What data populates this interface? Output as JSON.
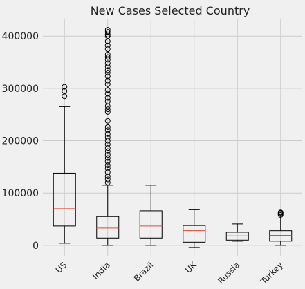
{
  "chart_data": {
    "type": "box",
    "title": "New Cases Selected Country",
    "xlabel": "",
    "ylabel": "",
    "ylim": [
      -20000,
      432000
    ],
    "yticks": [
      0,
      100000,
      200000,
      300000,
      400000
    ],
    "ytick_labels": [
      "0",
      "100000",
      "200000",
      "300000",
      "400000"
    ],
    "grid": true,
    "colors": {
      "background": "#f0f0f0",
      "grid": "#cbcbcb",
      "box": "#000000",
      "median": "#e24a33"
    },
    "categories": [
      "US",
      "India",
      "Brazil",
      "UK",
      "Russia",
      "Turkey"
    ],
    "boxes": [
      {
        "name": "US",
        "whisker_low": 4000,
        "q1": 37000,
        "median": 70000,
        "q3": 138000,
        "whisker_high": 265000,
        "fliers": [
          285000,
          295000,
          303000
        ]
      },
      {
        "name": "India",
        "whisker_low": 0,
        "q1": 14000,
        "median": 33000,
        "q3": 55000,
        "whisker_high": 115000,
        "fliers": [
          120000,
          126000,
          132000,
          140000,
          147000,
          153000,
          160000,
          167000,
          173000,
          180000,
          186000,
          193000,
          200000,
          206000,
          213000,
          220000,
          226000,
          238000,
          255000,
          260000,
          266000,
          275000,
          282000,
          290000,
          297000,
          308000,
          315000,
          323000,
          330000,
          335000,
          342000,
          348000,
          355000,
          360000,
          365000,
          375000,
          382000,
          390000,
          400000,
          403000,
          408000,
          412000
        ]
      },
      {
        "name": "Brazil",
        "whisker_low": 0,
        "q1": 14000,
        "median": 37000,
        "q3": 66000,
        "whisker_high": 115000,
        "fliers": []
      },
      {
        "name": "UK",
        "whisker_low": -4000,
        "q1": 6000,
        "median": 28000,
        "q3": 38000,
        "whisker_high": 68000,
        "fliers": []
      },
      {
        "name": "Russia",
        "whisker_low": 8000,
        "q1": 10000,
        "median": 18000,
        "q3": 25000,
        "whisker_high": 41000,
        "fliers": []
      },
      {
        "name": "Turkey",
        "whisker_low": 0,
        "q1": 8000,
        "median": 19000,
        "q3": 28000,
        "whisker_high": 56000,
        "fliers": [
          58000,
          60000,
          62000,
          63000
        ]
      }
    ]
  }
}
